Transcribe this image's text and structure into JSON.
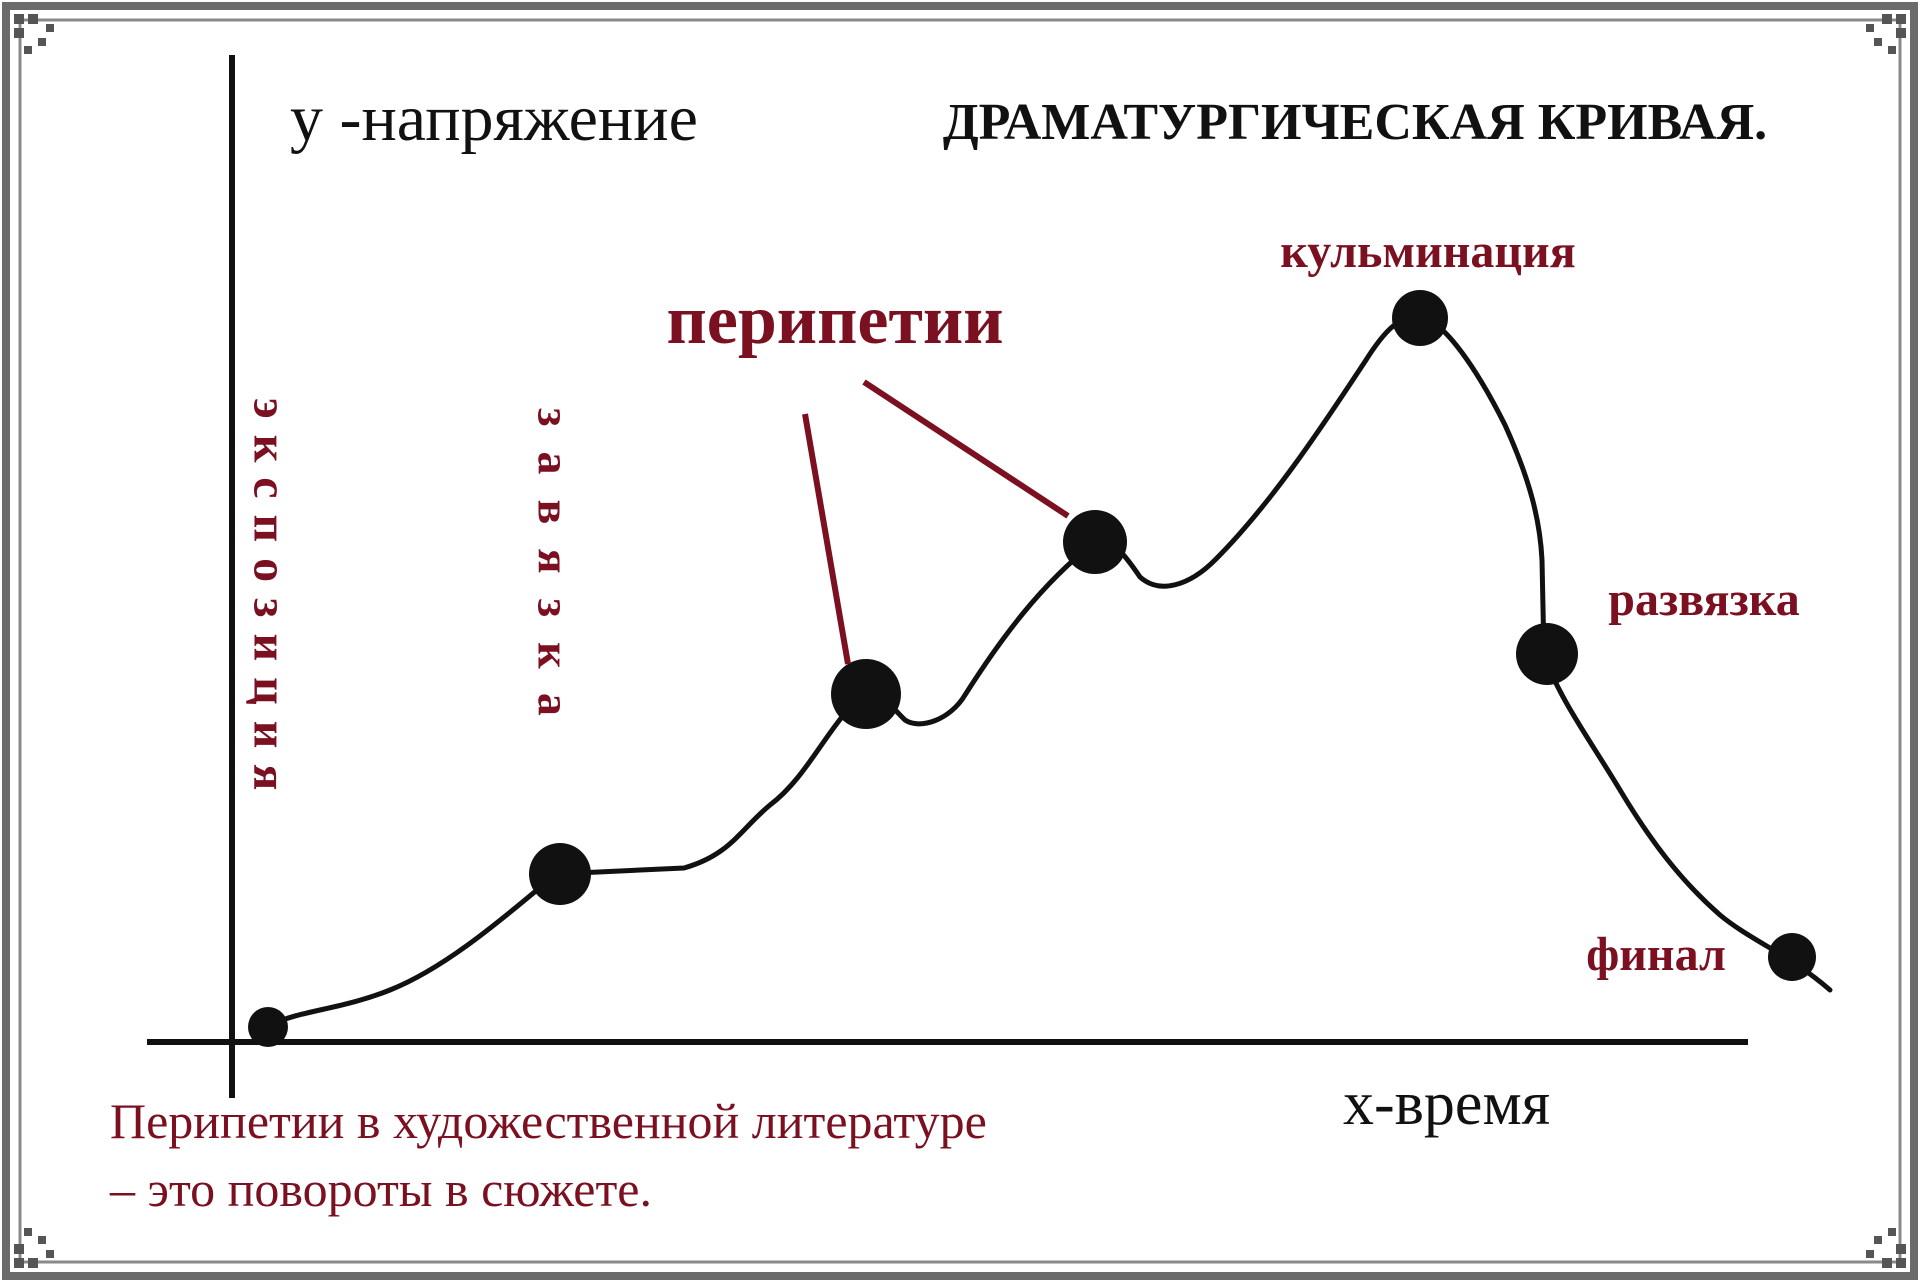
{
  "title": "ДРАМАТУРГИЧЕСКАЯ КРИВАЯ.",
  "y_axis_label": "у -напряжение",
  "x_axis_label": "х-время",
  "stages": {
    "exposition": "экспозиция",
    "inciting": "завязка",
    "peripeteia": "перипетии",
    "climax": "кульминация",
    "denouement": "развязка",
    "finale": "финал"
  },
  "caption": {
    "line1": "Перипетии в художественной литературе",
    "line2": "– это повороты в сюжете."
  },
  "colors": {
    "accent": "#7a1020",
    "ink": "#111111",
    "frame": "#6b6b6b"
  }
}
